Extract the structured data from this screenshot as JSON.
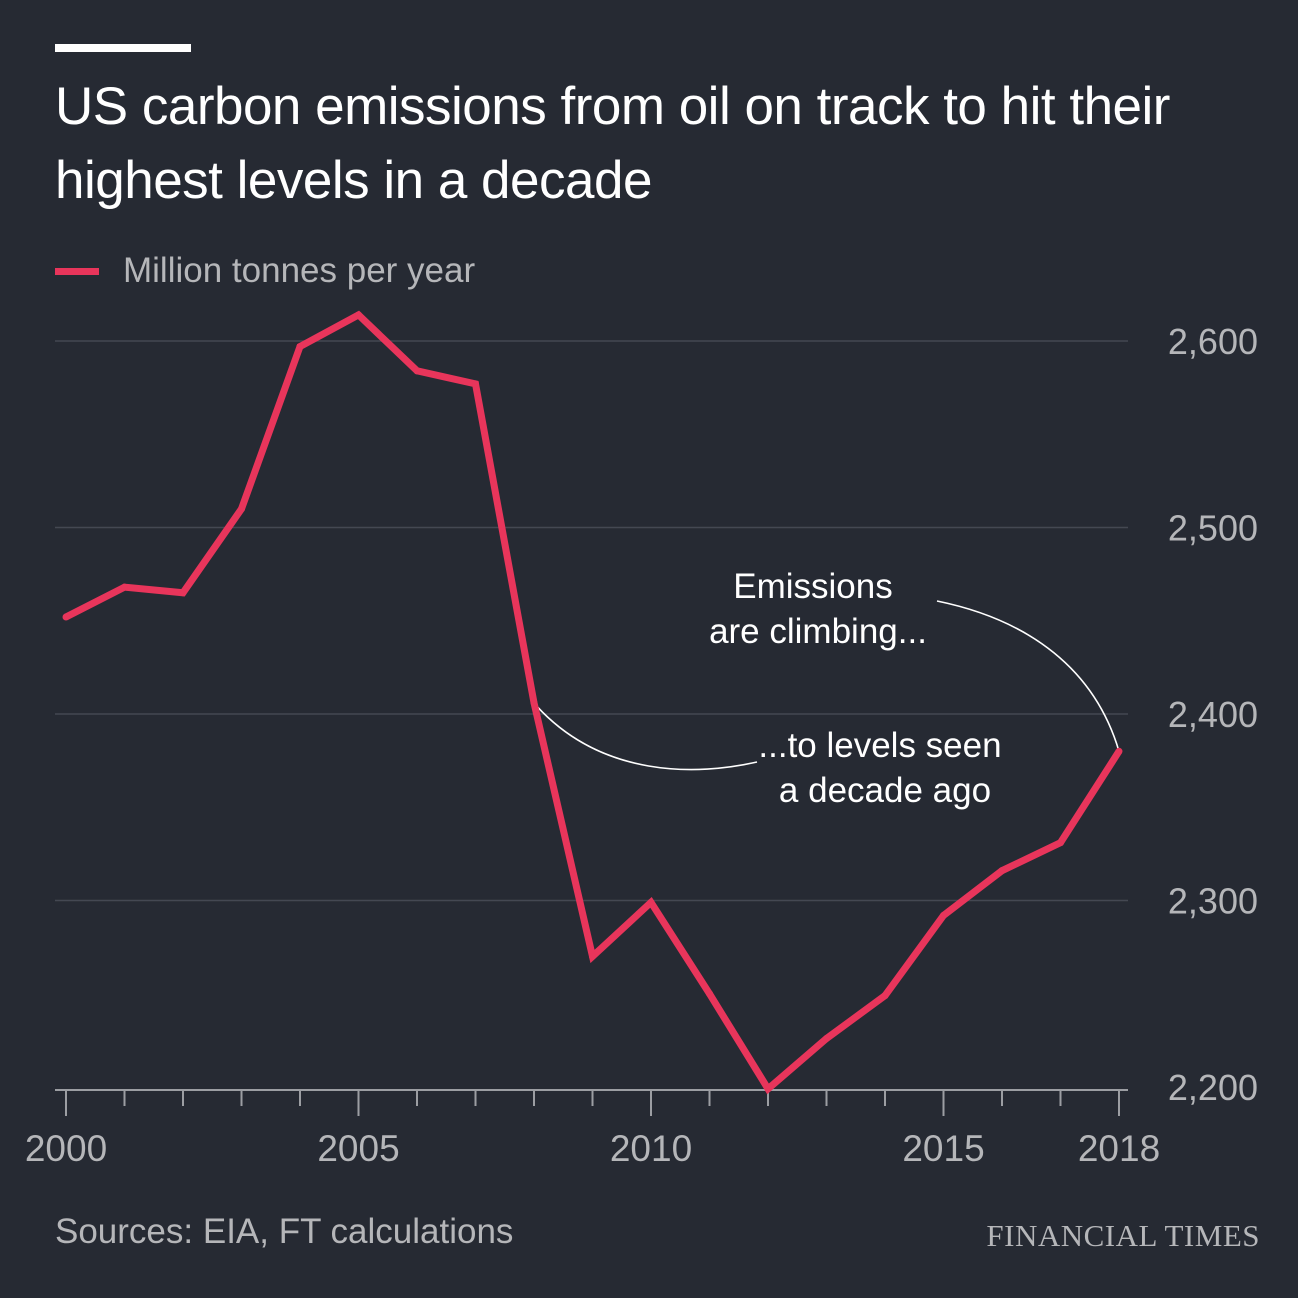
{
  "title": "US carbon emissions from oil on track to hit their highest levels in a decade",
  "source": "Sources: EIA, FT calculations",
  "brand": "FINANCIAL TIMES",
  "colors": {
    "background": "#262a33",
    "line": "#e8355b",
    "grid": "#444852",
    "text": "#ffffff",
    "muted": "#b5b6b9"
  },
  "chart_data": {
    "type": "line",
    "title": "US carbon emissions from oil on track to hit their highest levels in a decade",
    "xlabel": "",
    "ylabel": "",
    "xlim": [
      2000,
      2018
    ],
    "ylim": [
      2200,
      2620
    ],
    "x_ticks": [
      2000,
      2005,
      2010,
      2015,
      2018
    ],
    "y_ticks": [
      2200,
      2300,
      2400,
      2500,
      2600
    ],
    "y_tick_labels": [
      "2,200",
      "2,300",
      "2,400",
      "2,500",
      "2,600"
    ],
    "y_axis_side": "right",
    "grid": true,
    "legend": "top-left",
    "series": [
      {
        "name": "Million tonnes per year",
        "color": "#e8355b",
        "x": [
          2000,
          2001,
          2002,
          2003,
          2004,
          2005,
          2006,
          2007,
          2008,
          2009,
          2010,
          2011,
          2012,
          2013,
          2014,
          2015,
          2016,
          2017,
          2018
        ],
        "values": [
          2452,
          2468,
          2465,
          2510,
          2597,
          2614,
          2584,
          2577,
          2406,
          2270,
          2299,
          2250,
          2199,
          2226,
          2249,
          2292,
          2316,
          2331,
          2380
        ]
      }
    ],
    "annotations": [
      {
        "id": "climbing",
        "line1": "Emissions",
        "line2": "are climbing...",
        "target_x": 2018,
        "target_y": 2380
      },
      {
        "id": "decade",
        "line1": "...to levels seen",
        "line2": "a decade ago",
        "target_x": 2008,
        "target_y": 2406
      }
    ]
  }
}
